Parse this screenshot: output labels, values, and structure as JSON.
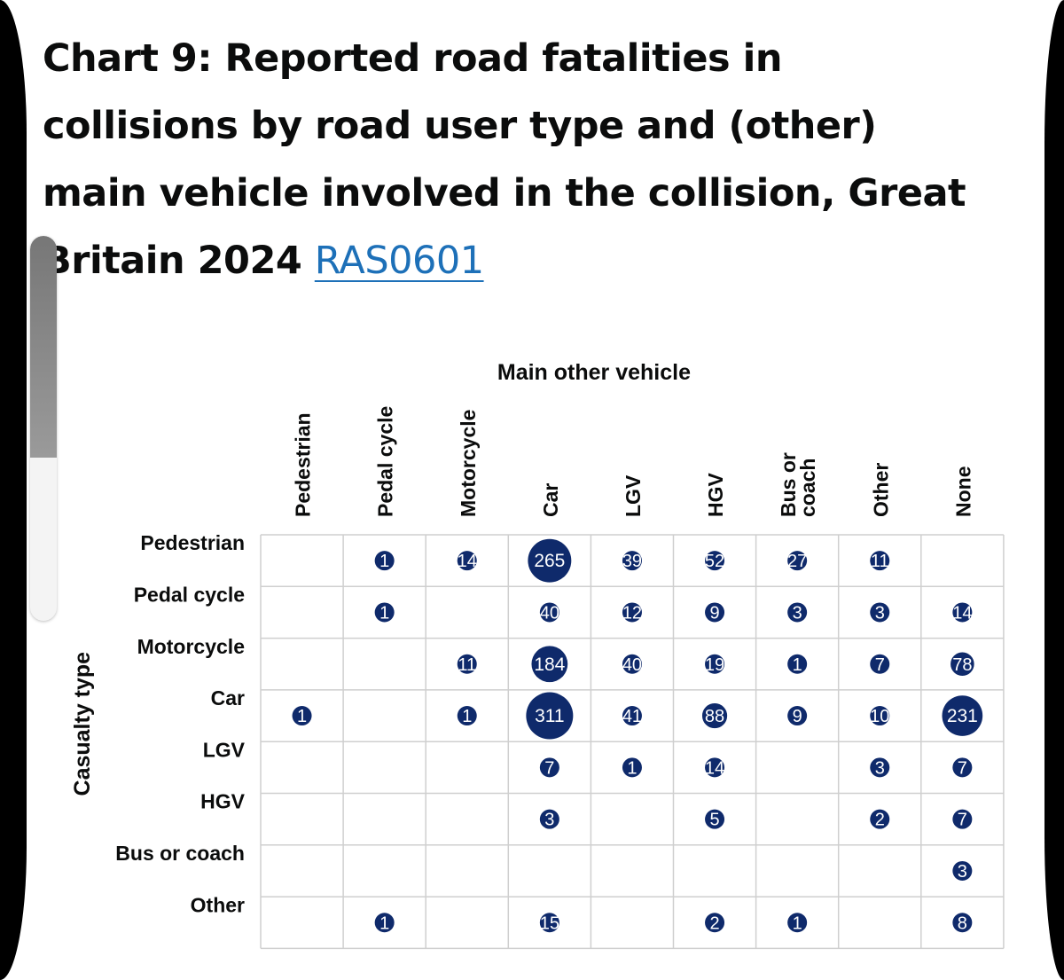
{
  "title": {
    "text": "Chart 9: Reported road fatalities in collisions by road user type and (other) main vehicle involved in the collision, Great Britain 2024",
    "link": "RAS0601"
  },
  "colors": {
    "bubble": "#0f2a6b",
    "link": "#1d70b8",
    "grid": "#cfcfcf",
    "text": "#0b0c0c"
  },
  "chart_data": {
    "type": "heatmap",
    "title": "Chart 9: Reported road fatalities in collisions by road user type and (other) main vehicle involved in the collision, Great Britain 2024",
    "xlabel": "Main other vehicle",
    "ylabel": "Casualty type",
    "columns": [
      "Pedestrian",
      "Pedal cycle",
      "Motorcycle",
      "Car",
      "LGV",
      "HGV",
      "Bus or coach",
      "Other",
      "None"
    ],
    "rows": [
      "Pedestrian",
      "Pedal cycle",
      "Motorcycle",
      "Car",
      "LGV",
      "HGV",
      "Bus or coach",
      "Other"
    ],
    "values": [
      [
        null,
        1,
        14,
        265,
        39,
        52,
        27,
        11,
        null
      ],
      [
        null,
        1,
        null,
        40,
        12,
        9,
        3,
        3,
        14
      ],
      [
        null,
        null,
        11,
        184,
        40,
        19,
        1,
        7,
        78
      ],
      [
        1,
        null,
        1,
        311,
        41,
        88,
        9,
        10,
        231
      ],
      [
        null,
        null,
        null,
        7,
        1,
        14,
        null,
        3,
        7
      ],
      [
        null,
        null,
        null,
        3,
        null,
        5,
        null,
        2,
        7
      ],
      [
        null,
        null,
        null,
        null,
        null,
        null,
        null,
        null,
        3
      ],
      [
        null,
        1,
        null,
        15,
        null,
        2,
        1,
        null,
        8
      ]
    ],
    "encoding": "bubble area proportional to value"
  }
}
